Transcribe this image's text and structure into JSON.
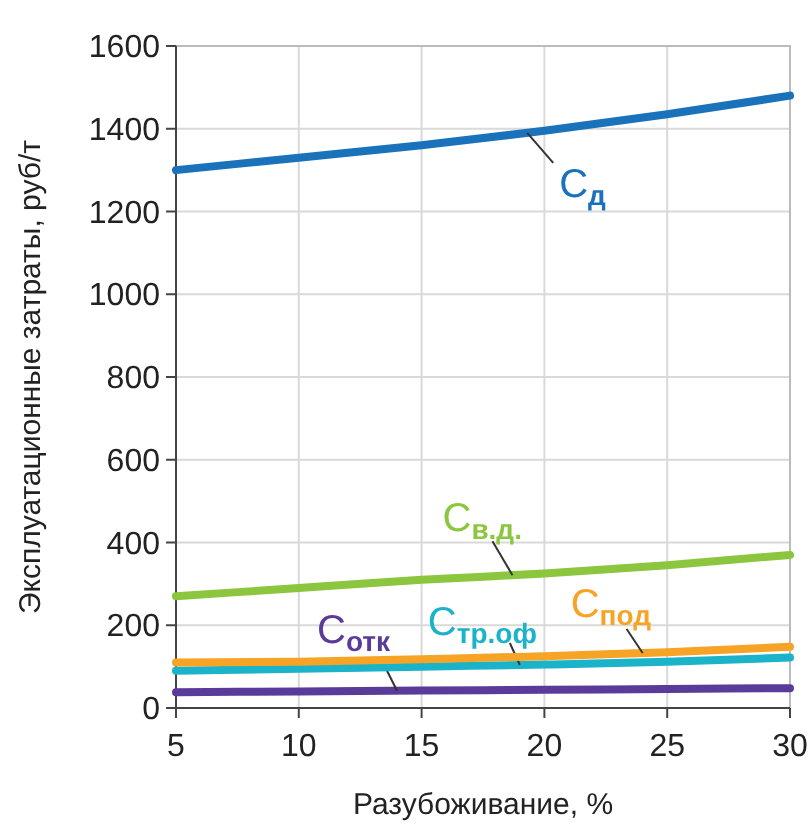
{
  "chart_data": {
    "type": "line",
    "xlabel": "Разубоживание, %",
    "ylabel": "Эксплуатационные затраты, руб/т",
    "x": [
      5,
      10,
      15,
      20,
      25,
      30
    ],
    "series": [
      {
        "name": "C$_{д}$",
        "color": "#1a72bb",
        "values": [
          1300,
          1330,
          1360,
          1395,
          1435,
          1480
        ]
      },
      {
        "name": "C$_{в.д.}$",
        "color": "#8cc63f",
        "values": [
          270,
          290,
          310,
          325,
          345,
          370
        ]
      },
      {
        "name": "C$_{отк}$",
        "color": "#5b3b9a",
        "values": [
          38,
          40,
          42,
          44,
          46,
          48
        ]
      },
      {
        "name": "C$_{тр.оф}$",
        "color": "#1bb3c9",
        "values": [
          90,
          95,
          100,
          105,
          112,
          122
        ]
      },
      {
        "name": "C$_{под}$",
        "color": "#f7a325",
        "values": [
          110,
          112,
          118,
          125,
          135,
          148
        ]
      }
    ],
    "xlim": [
      5,
      30
    ],
    "xticks": [
      5,
      10,
      15,
      20,
      25,
      30
    ],
    "ylim": [
      0,
      1600
    ],
    "yticks": [
      0,
      200,
      400,
      600,
      800,
      1000,
      1200,
      1400,
      1600
    ],
    "grid": true,
    "marker": "none",
    "line_style": "solid",
    "legend": false
  }
}
